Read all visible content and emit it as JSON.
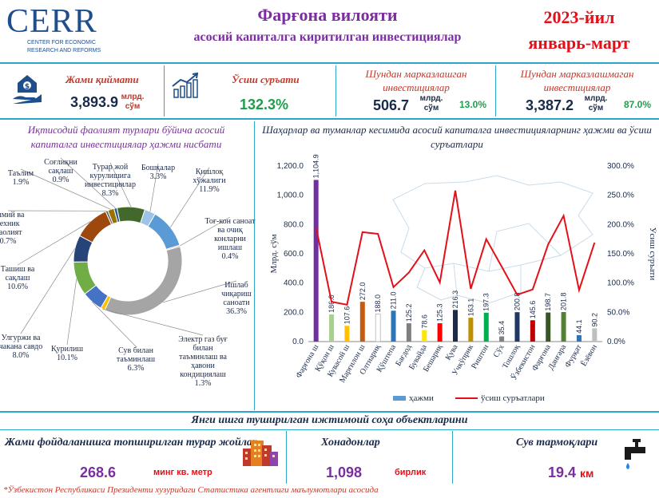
{
  "logo": {
    "name": "CERR",
    "sub1": "CENTER FOR ECONOMIC",
    "sub2": "RESEARCH AND REFORMS"
  },
  "header": {
    "title": "Фарғона вилояти",
    "subtitle": "асосий капиталга киритилган инвестициялар",
    "year": "2023-йил",
    "period": "январь-март"
  },
  "kpis": {
    "total": {
      "label": "Жами қиймати",
      "value": "3,893.9",
      "unit1": "млрд.",
      "unit2": "сўм"
    },
    "growth": {
      "label": "Ўсиш суръати",
      "value": "132.3%"
    },
    "centralized": {
      "label1": "Шундан марказлашган",
      "label2": "инвестициялар",
      "value": "506.7",
      "unit1": "млрд.",
      "unit2": "сўм",
      "share": "13.0%"
    },
    "decentralized": {
      "label1": "Шундан марказлашмаган",
      "label2": "инвестициялар",
      "value": "3,387.2",
      "unit1": "млрд.",
      "unit2": "сўм",
      "share": "87.0%"
    }
  },
  "pie_title1": "Иқтисодий фаолият турлари бўйича асосий",
  "pie_title2": "капиталга инвестициялар ҳажми нисбати",
  "bar_title1": "Шаҳарлар ва туманлар кесимида асосий капиталга инвестицияларнинг ҳажми ва ўсиш",
  "bar_title2": "суръатлари",
  "chart_data": [
    {
      "type": "pie",
      "title": "Иқтисодий фаолият турлари бўйича асосий капиталга инвестициялар ҳажми нисбати",
      "slices": [
        {
          "label1": "Бошқалар",
          "label2": "",
          "label3": "",
          "label4": "",
          "pct": "3.3%",
          "value": 3.3,
          "color": "#9dc3e6"
        },
        {
          "label1": "Қишлоқ",
          "label2": "хўжалиги",
          "label3": "",
          "label4": "",
          "pct": "11.9%",
          "value": 11.9,
          "color": "#5b9bd5"
        },
        {
          "label1": "Тоғ-кон саноат",
          "label2": "ва очиқ",
          "label3": "конларни",
          "label4": "ишлаш",
          "pct": "0.4%",
          "value": 0.4,
          "color": "#f4b183"
        },
        {
          "label1": "Ишлаб",
          "label2": "чиқариш",
          "label3": "саноати",
          "label4": "",
          "pct": "36.3%",
          "value": 36.3,
          "color": "#a5a5a5"
        },
        {
          "label1": "Электр газ буғ",
          "label2": "билан",
          "label3": "таъминлаш ва",
          "label4": "ҳавони кондициялаш",
          "pct": "1.3%",
          "value": 1.3,
          "color": "#ffc000"
        },
        {
          "label1": "Сув билан",
          "label2": "таъминлаш",
          "label3": "",
          "label4": "",
          "pct": "6.3%",
          "value": 6.3,
          "color": "#4472c4"
        },
        {
          "label1": "Қурилиш",
          "label2": "",
          "label3": "",
          "label4": "",
          "pct": "10.1%",
          "value": 10.1,
          "color": "#70ad47"
        },
        {
          "label1": "Улгуржи ва",
          "label2": "чакана савдо",
          "label3": "",
          "label4": "",
          "pct": "8.0%",
          "value": 8.0,
          "color": "#264478"
        },
        {
          "label1": "Ташиш ва",
          "label2": "сақлаш",
          "label3": "",
          "label4": "",
          "pct": "10.6%",
          "value": 10.6,
          "color": "#9e480e"
        },
        {
          "label1": "Илмий ва",
          "label2": "техник",
          "label3": "фаолият",
          "label4": "",
          "pct": "0.7%",
          "value": 0.7,
          "color": "#636363"
        },
        {
          "label1": "Таълим",
          "label2": "",
          "label3": "",
          "label4": "",
          "pct": "1.9%",
          "value": 1.9,
          "color": "#997300"
        },
        {
          "label1": "Соғлиқни",
          "label2": "сақлаш",
          "label3": "",
          "label4": "",
          "pct": "0.9%",
          "value": 0.9,
          "color": "#255e91"
        },
        {
          "label1": "Турар жой",
          "label2": "курулишига",
          "label3": "инвестициялар",
          "label4": "",
          "pct": "8.3%",
          "value": 8.3,
          "color": "#43682b"
        }
      ]
    },
    {
      "type": "bar",
      "title": "Шаҳарлар ва туманлар кесимида асосий капиталга инвестицияларнинг ҳажми ва ўсиш суръатлари",
      "categories": [
        "Фарғона ш",
        "Қўқон ш",
        "Кувасой ш",
        "Марғилон ш",
        "Олтиариқ",
        "Қўштепа",
        "Бағдод",
        "Бувайда",
        "Бешариқ",
        "Қува",
        "Учкўприк",
        "Риштон",
        "Сўх",
        "Тошлоқ",
        "Ўзбекистон",
        "Фарғона",
        "Данғара",
        "Фурқат",
        "Ёзёвон"
      ],
      "series": [
        {
          "name": "ҳажми",
          "axis": "left",
          "values": [
            1104.9,
            186.0,
            107.6,
            272.0,
            188.0,
            211.0,
            125.2,
            78.6,
            125.3,
            216.3,
            163.1,
            197.3,
            35.4,
            200.8,
            145.6,
            198.7,
            201.8,
            44.1,
            90.2
          ],
          "labels": [
            "1,104.9",
            "186.0",
            "107.6",
            "272.0",
            "188.0",
            "211.0",
            "125.2",
            "78.6",
            "125.3",
            "216.3",
            "163.1",
            "197.3",
            "35.4",
            "200.8",
            "145.6",
            "198.7",
            "201.8",
            "44.1",
            "90.2"
          ],
          "colors": [
            "#7030a0",
            "#a9d18e",
            "#ffc000",
            "#c55a11",
            "#ffffff",
            "#2e75b6",
            "#808080",
            "#ffe600",
            "#ff0000",
            "#1f2a4a",
            "#bf9000",
            "#00b050",
            "#7f7f7f",
            "#203864",
            "#c00000",
            "#375623",
            "#548235",
            "#2f75b5",
            "#bfbfbf"
          ]
        },
        {
          "name": "ўсиш суръатлари",
          "axis": "right",
          "values": [
            195,
            68,
            63,
            187,
            184,
            93,
            118,
            156,
            101,
            258,
            90,
            175,
            128,
            80,
            89,
            166,
            215,
            88,
            169
          ]
        }
      ],
      "ylabel": "Млрд. сўм",
      "y2label": "Ўсиш суръати",
      "ylim": [
        0,
        1200
      ],
      "y2lim": [
        0,
        300
      ],
      "yticks": [
        "0.0",
        "200.0",
        "400.0",
        "600.0",
        "800.0",
        "1,000.0",
        "1,200.0"
      ],
      "y2ticks": [
        "0.0%",
        "50.0%",
        "100.0%",
        "150.0%",
        "200.0%",
        "250.0%",
        "300.0%"
      ],
      "legend": [
        "ҳажми",
        "ўсиш суръатлари"
      ]
    }
  ],
  "bottom": {
    "title": "Янги ишга туширилган ижтимоий соҳа объектларини",
    "housing": {
      "label": "Жами фойдаланишга топширилган турар жойлар",
      "value": "268.6",
      "unit": "минг кв. метр"
    },
    "households": {
      "label": "Хонадонлар",
      "value": "1,098",
      "unit": "бирлик"
    },
    "water": {
      "label": "Сув тармоқлари",
      "value": "19.4",
      "unit": "км"
    }
  },
  "footnote": "*Ўзбекистон Республикаси Президенти хузуридаги Статистика агентлиги маълумотлари асосида"
}
